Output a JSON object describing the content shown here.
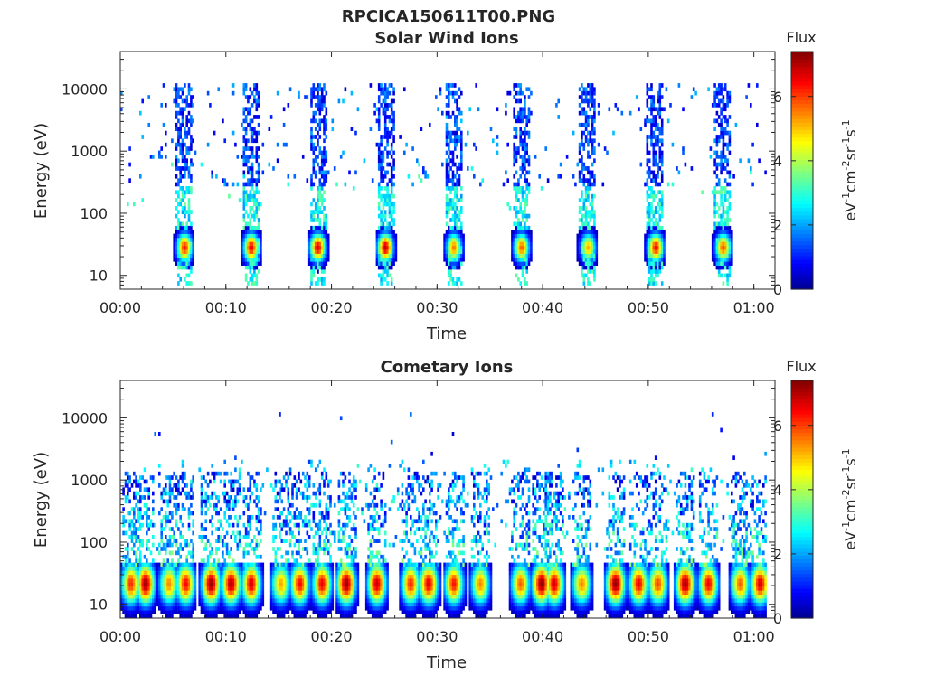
{
  "figure": {
    "filename": "RPCICA150611T00.PNG",
    "background": "#ffffff"
  },
  "colormap": {
    "name": "jet",
    "stops": [
      "#00008f",
      "#0000ff",
      "#00ffff",
      "#ffff00",
      "#ff0000",
      "#800000"
    ]
  },
  "chart_data": [
    {
      "type": "heatmap",
      "title": "Solar Wind Ions",
      "xlabel": "Time",
      "ylabel": "Energy (eV)",
      "yscale": "log",
      "ylim": [
        6,
        40000
      ],
      "xlim_min": [
        0,
        62
      ],
      "xticks_min": [
        0,
        10,
        20,
        30,
        40,
        50,
        60
      ],
      "xtick_labels": [
        "00:00",
        "00:10",
        "00:20",
        "00:30",
        "00:40",
        "00:50",
        "01:00"
      ],
      "yticks": [
        10,
        100,
        1000,
        10000
      ],
      "ytick_labels": [
        "10",
        "100",
        "1000",
        "10000"
      ],
      "colorbar": {
        "title": "Flux",
        "label": "eV-1cm-2sr-1s-1",
        "label_parts": [
          "eV",
          "-1",
          "cm",
          "-2",
          "sr",
          "-1",
          "s",
          "-1"
        ],
        "range": [
          0,
          7.4
        ],
        "ticks": [
          0,
          2,
          4,
          6
        ],
        "tick_labels": [
          "0",
          "2",
          "4",
          "6"
        ]
      },
      "bursts_center_min": [
        6.0,
        12.3,
        18.6,
        25.0,
        31.5,
        37.9,
        44.2,
        50.6,
        57.0
      ],
      "burst_peak_energy_eV": 25,
      "burst_peak_flux": [
        6.3,
        6.6,
        6.8,
        6.9,
        5.6,
        5.8,
        5.2,
        6.4,
        5.9
      ],
      "burst_high_energy_extent_eV": 10000,
      "burst_high_energy_flux": 1.0,
      "background_scatter_flux": [
        0.5,
        3.5
      ]
    },
    {
      "type": "heatmap",
      "title": "Cometary Ions",
      "xlabel": "Time",
      "ylabel": "Energy (eV)",
      "yscale": "log",
      "ylim": [
        6,
        40000
      ],
      "xlim_min": [
        0,
        62
      ],
      "xticks_min": [
        0,
        10,
        20,
        30,
        40,
        50,
        60
      ],
      "xtick_labels": [
        "00:00",
        "00:10",
        "00:20",
        "00:30",
        "00:40",
        "00:50",
        "01:00"
      ],
      "yticks": [
        10,
        100,
        1000,
        10000
      ],
      "ytick_labels": [
        "10",
        "100",
        "1000",
        "10000"
      ],
      "colorbar": {
        "title": "Flux",
        "label": "eV-1cm-2sr-1s-1",
        "label_parts": [
          "eV",
          "-1",
          "cm",
          "-2",
          "sr",
          "-1",
          "s",
          "-1"
        ],
        "range": [
          0,
          7.4
        ],
        "ticks": [
          0,
          2,
          4,
          6
        ],
        "tick_labels": [
          "0",
          "2",
          "4",
          "6"
        ]
      },
      "bursts_center_min": [
        0.9,
        2.3,
        4.5,
        6.1,
        8.5,
        10.4,
        12.3,
        15.1,
        16.9,
        19.0,
        21.3,
        24.2,
        27.4,
        29.1,
        31.5,
        34.0,
        37.8,
        39.8,
        41.0,
        43.6,
        46.8,
        49.0,
        50.8,
        53.4,
        55.6,
        58.6,
        60.5
      ],
      "burst_peak_flux": [
        6.2,
        7.2,
        5.5,
        6.5,
        7.3,
        7.1,
        6.8,
        5.3,
        6.5,
        6.6,
        7.3,
        6.9,
        6.2,
        6.7,
        6.4,
        5.5,
        5.8,
        7.3,
        6.8,
        5.5,
        7.3,
        6.6,
        6.0,
        7.2,
        6.6,
        5.8,
        6.8
      ],
      "burst_peak_energy_eV": [
        10,
        45
      ],
      "burst_high_energy_extent_eV": 1000,
      "background_scatter_flux": [
        1.0,
        3.5
      ]
    }
  ]
}
